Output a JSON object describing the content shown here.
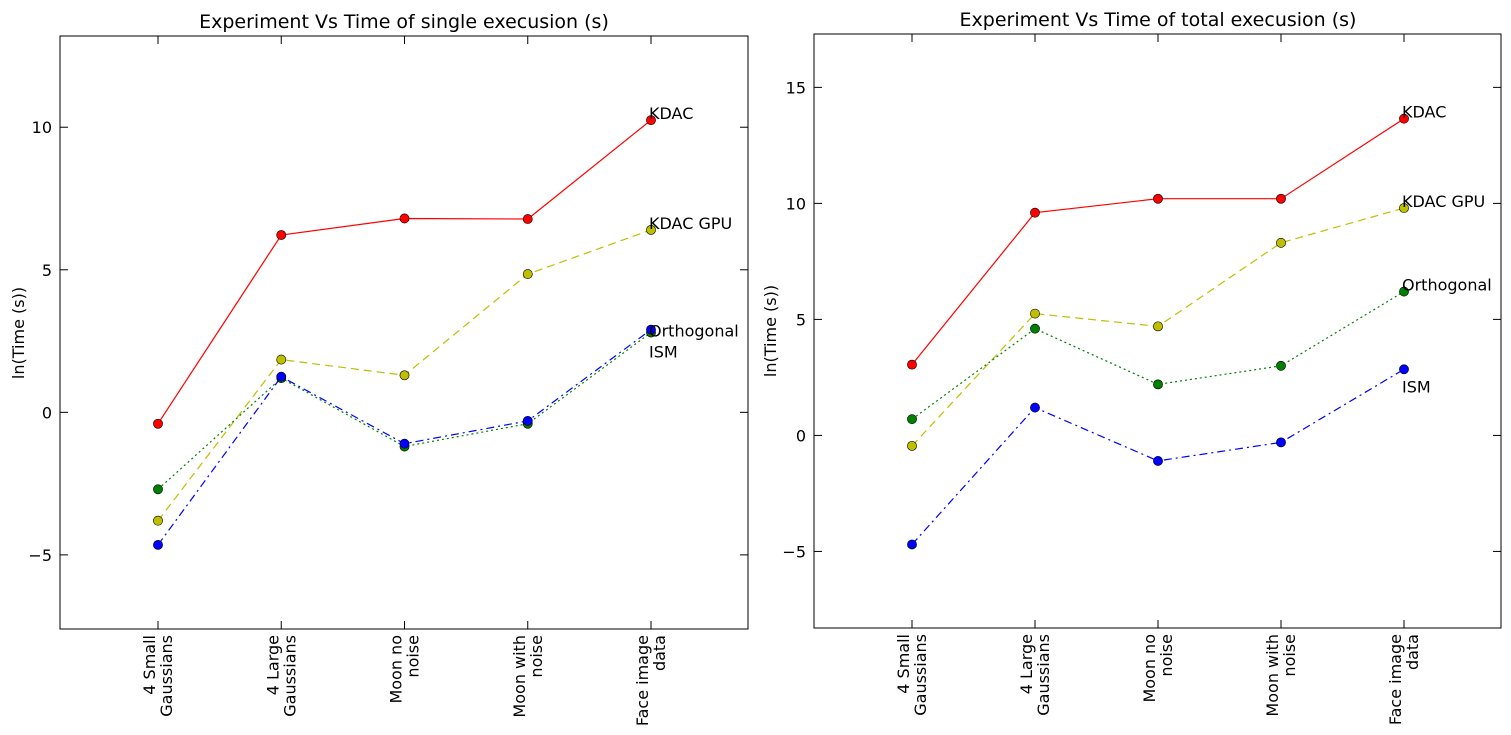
{
  "chart_data": [
    {
      "type": "line",
      "title": "Experiment Vs Time of single execusion (s)",
      "xlabel": "",
      "ylabel": "ln(Time (s))",
      "categories": [
        [
          "4 Small",
          "Gaussians"
        ],
        [
          "4 Large",
          "Gaussians"
        ],
        [
          "Moon no",
          "noise"
        ],
        [
          "Moon with",
          "noise"
        ],
        [
          "Face image",
          "data"
        ]
      ],
      "ylim": [
        -7.6,
        13.2
      ],
      "yticks": [
        -5,
        0,
        5,
        10
      ],
      "grid": false,
      "series": [
        {
          "name": "KDAC",
          "color": "#ff0000",
          "linestyle": "solid",
          "values": [
            -0.4,
            6.22,
            6.8,
            6.78,
            10.25
          ]
        },
        {
          "name": "KDAC GPU",
          "color": "#bfbf00",
          "linestyle": "dashed",
          "values": [
            -3.8,
            1.85,
            1.3,
            4.85,
            6.4
          ]
        },
        {
          "name": "Orthogonal",
          "color": "#008000",
          "linestyle": "dotted",
          "values": [
            -2.7,
            1.2,
            -1.2,
            -0.4,
            2.8
          ]
        },
        {
          "name": "ISM",
          "color": "#0000ff",
          "linestyle": "dashdot",
          "values": [
            -4.65,
            1.25,
            -1.1,
            -0.3,
            2.9
          ]
        }
      ],
      "annotations": [
        {
          "text": "KDAC",
          "series": 0
        },
        {
          "text": "KDAC GPU",
          "series": 1
        },
        {
          "text": "Orthogonal",
          "series": 2
        },
        {
          "text": "ISM",
          "series": 3
        }
      ]
    },
    {
      "type": "line",
      "title": "Experiment Vs Time of total execusion (s)",
      "xlabel": "",
      "ylabel": "ln(Time (s))",
      "categories": [
        [
          "4 Small",
          "Gaussians"
        ],
        [
          "4 Large",
          "Gaussians"
        ],
        [
          "Moon no",
          "noise"
        ],
        [
          "Moon with",
          "noise"
        ],
        [
          "Face image",
          "data"
        ]
      ],
      "ylim": [
        -8.3,
        17.3
      ],
      "yticks": [
        -5,
        0,
        5,
        10,
        15
      ],
      "grid": false,
      "series": [
        {
          "name": "KDAC",
          "color": "#ff0000",
          "linestyle": "solid",
          "values": [
            3.05,
            9.6,
            10.2,
            10.2,
            13.65
          ]
        },
        {
          "name": "KDAC GPU",
          "color": "#bfbf00",
          "linestyle": "dashed",
          "values": [
            -0.45,
            5.25,
            4.7,
            8.3,
            9.8
          ]
        },
        {
          "name": "Orthogonal",
          "color": "#008000",
          "linestyle": "dotted",
          "values": [
            0.7,
            4.6,
            2.2,
            3.0,
            6.2
          ]
        },
        {
          "name": "ISM",
          "color": "#0000ff",
          "linestyle": "dashdot",
          "values": [
            -4.7,
            1.2,
            -1.1,
            -0.3,
            2.85
          ]
        }
      ],
      "annotations": [
        {
          "text": "KDAC",
          "series": 0
        },
        {
          "text": "KDAC GPU",
          "series": 1
        },
        {
          "text": "Orthogonal",
          "series": 2
        },
        {
          "text": "ISM",
          "series": 3
        }
      ]
    }
  ]
}
